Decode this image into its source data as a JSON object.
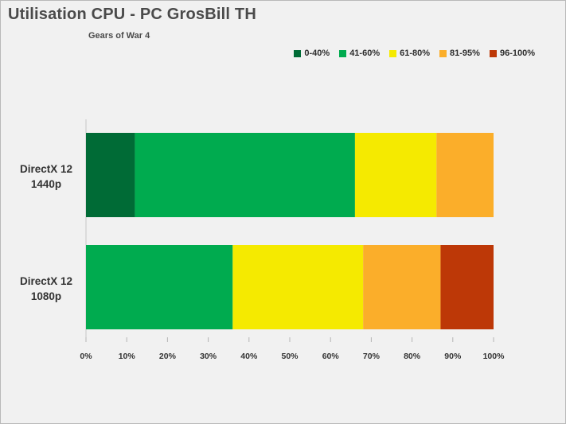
{
  "chart_data": {
    "type": "bar",
    "orientation": "horizontal",
    "stacked": true,
    "title": "Utilisation CPU - PC GrosBill TH",
    "subtitle": "Gears of War 4",
    "categories": [
      [
        "DirectX 12",
        "1440p"
      ],
      [
        "DirectX 12",
        "1080p"
      ]
    ],
    "series": [
      {
        "name": "0-40%",
        "color": "#006b36",
        "values": [
          12,
          0
        ]
      },
      {
        "name": "41-60%",
        "color": "#00ab4f",
        "values": [
          54,
          36
        ]
      },
      {
        "name": "61-80%",
        "color": "#f5ea00",
        "values": [
          20,
          32
        ]
      },
      {
        "name": "81-95%",
        "color": "#fbae2a",
        "values": [
          14,
          19
        ]
      },
      {
        "name": "96-100%",
        "color": "#bd3807",
        "values": [
          0,
          13
        ]
      }
    ],
    "xlim": [
      0,
      100
    ],
    "xticks": [
      "0%",
      "10%",
      "20%",
      "30%",
      "40%",
      "50%",
      "60%",
      "70%",
      "80%",
      "90%",
      "100%"
    ],
    "legend_position": "top-right",
    "grid": false
  }
}
